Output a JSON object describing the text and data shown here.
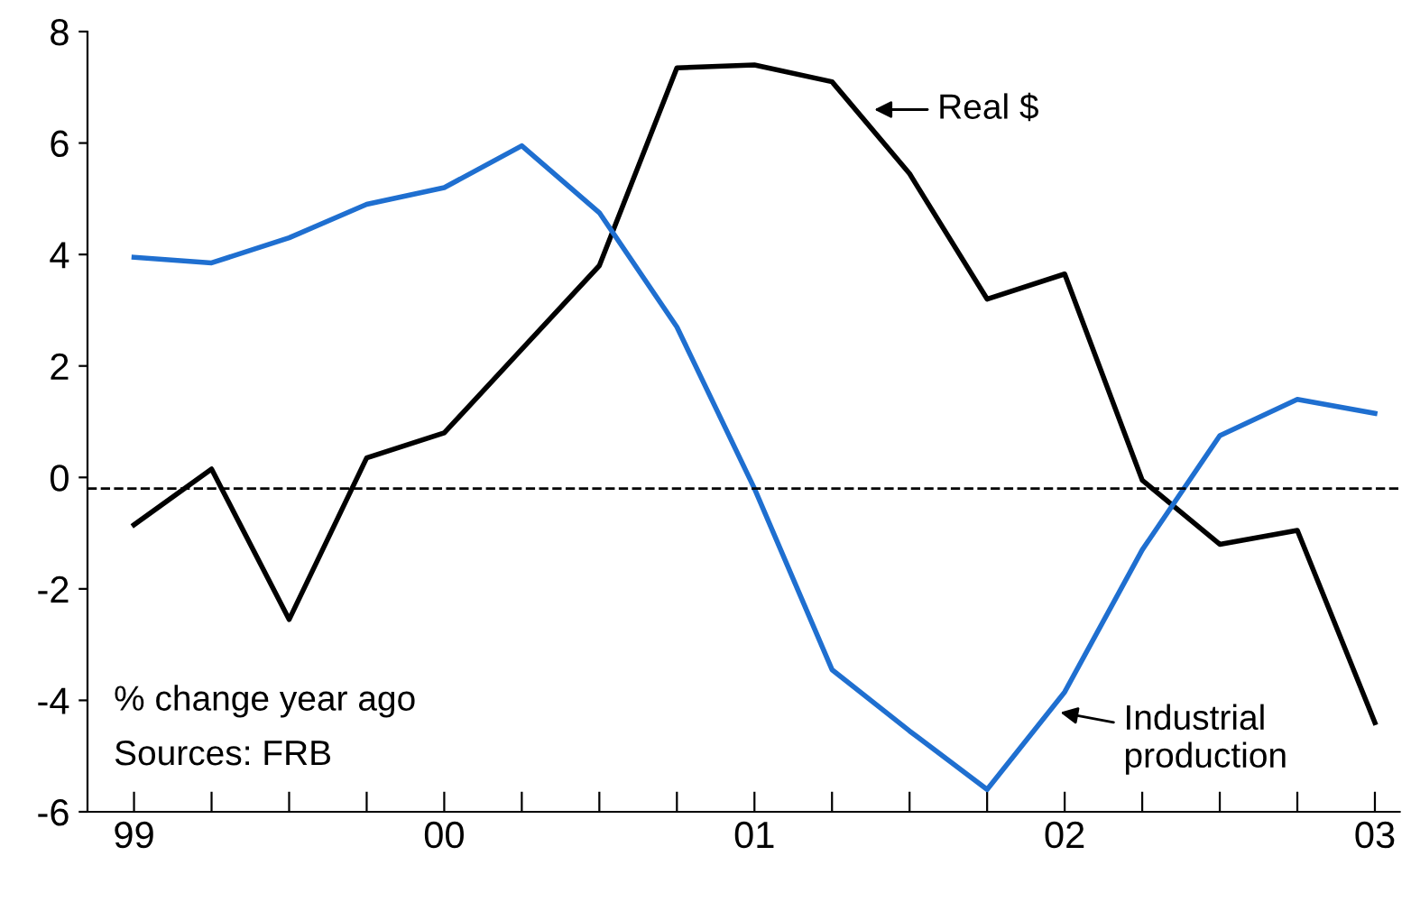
{
  "chart_data": {
    "type": "line",
    "x": [
      1999,
      1999.25,
      1999.5,
      1999.75,
      2000,
      2000.25,
      2000.5,
      2000.75,
      2001,
      2001.25,
      2001.5,
      2001.75,
      2002,
      2002.25,
      2002.5,
      2002.75,
      2003
    ],
    "series": [
      {
        "color": "#000000",
        "values": [
          -0.85,
          0.15,
          -2.55,
          0.35,
          0.8,
          2.3,
          3.8,
          7.35,
          7.4,
          7.1,
          5.45,
          3.2,
          3.65,
          -0.05,
          -1.2,
          -0.95,
          -4.4
        ]
      },
      {
        "color": "#1f6fd0",
        "values": [
          3.95,
          3.85,
          4.3,
          4.9,
          5.2,
          5.95,
          4.75,
          2.7,
          -0.2,
          -3.45,
          -4.55,
          -5.6,
          -3.85,
          -1.3,
          0.75,
          1.4,
          1.15
        ]
      }
    ],
    "xlim": [
      1998.85,
      2003.08
    ],
    "ylim": [
      -6,
      8
    ],
    "yticks": [
      -6,
      -4,
      -2,
      0,
      2,
      4,
      6,
      8
    ],
    "xticks": [
      {
        "value": 1999,
        "label": "99"
      },
      {
        "value": 1999.25,
        "label": null
      },
      {
        "value": 1999.5,
        "label": null
      },
      {
        "value": 1999.75,
        "label": null
      },
      {
        "value": 2000,
        "label": "00"
      },
      {
        "value": 2000.25,
        "label": null
      },
      {
        "value": 2000.5,
        "label": null
      },
      {
        "value": 2000.75,
        "label": null
      },
      {
        "value": 2001,
        "label": "01"
      },
      {
        "value": 2001.25,
        "label": null
      },
      {
        "value": 2001.5,
        "label": null
      },
      {
        "value": 2001.75,
        "label": null
      },
      {
        "value": 2002,
        "label": "02"
      },
      {
        "value": 2002.25,
        "label": null
      },
      {
        "value": 2002.5,
        "label": null
      },
      {
        "value": 2002.75,
        "label": null
      },
      {
        "value": 2003,
        "label": "03"
      }
    ],
    "ref_lines": [
      {
        "axis": "y",
        "value": -0.2,
        "color": "#000000",
        "line_style": "dashed"
      }
    ],
    "annotations": [
      {
        "text": "Real $",
        "x": 2001.37,
        "y": 6.6
      },
      {
        "text": "Industrial production",
        "x": 2001.97,
        "y": -4.2
      },
      "% change year ago",
      "Sources: FRB"
    ],
    "grid": false,
    "legend": false,
    "marker": "none",
    "line_style": "solid"
  }
}
